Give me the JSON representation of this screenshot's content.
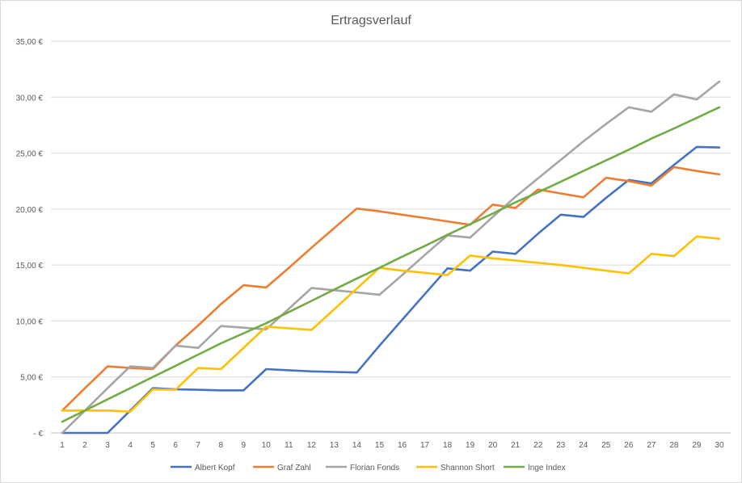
{
  "chart_data": {
    "type": "line",
    "title": "Ertragsverlauf",
    "xlabel": "",
    "ylabel": "",
    "x": [
      1,
      2,
      3,
      4,
      5,
      6,
      7,
      8,
      9,
      10,
      11,
      12,
      13,
      14,
      15,
      16,
      17,
      18,
      19,
      20,
      21,
      22,
      23,
      24,
      25,
      26,
      27,
      28,
      29,
      30
    ],
    "ylim": [
      0,
      35
    ],
    "y_ticks": [
      0,
      5,
      10,
      15,
      20,
      25,
      30,
      35
    ],
    "y_tick_labels": [
      "-  €",
      "5,00 €",
      "10,00 €",
      "15,00 €",
      "20,00 €",
      "25,00 €",
      "30,00 €",
      "35,00 €"
    ],
    "grid": true,
    "legend_position": "bottom",
    "series": [
      {
        "name": "Albert Kopf",
        "color": "#4472C4",
        "values": [
          0.0,
          0.0,
          0.0,
          2.0,
          4.0,
          3.9,
          3.85,
          3.8,
          3.8,
          5.7,
          5.6,
          5.5,
          5.45,
          5.4,
          7.8,
          10.1,
          12.4,
          14.7,
          14.5,
          16.2,
          16.0,
          17.8,
          19.5,
          19.3,
          21.0,
          22.6,
          22.3,
          23.95,
          25.55,
          25.5
        ],
        "values_note": "ignored"
      },
      {
        "name": "Graf Zahl",
        "color": "#ED7D31",
        "values": [
          2.0,
          4.0,
          5.95,
          5.8,
          5.7,
          7.8,
          9.6,
          11.5,
          13.2,
          13.0,
          14.75,
          16.55,
          18.3,
          20.05,
          19.8,
          19.5,
          19.2,
          18.9,
          18.6,
          20.4,
          20.1,
          21.75,
          21.4,
          21.05,
          22.8,
          22.5,
          22.1,
          23.75,
          23.4,
          23.1
        ]
      },
      {
        "name": "Florian Fonds",
        "color": "#A5A5A5",
        "values": [
          0.0,
          2.0,
          4.0,
          5.95,
          5.8,
          7.8,
          7.6,
          9.55,
          9.4,
          9.25,
          11.1,
          12.95,
          12.75,
          12.55,
          12.35,
          14.1,
          15.9,
          17.65,
          17.45,
          19.3,
          21.1,
          22.75,
          24.4,
          26.05,
          27.6,
          29.1,
          28.7,
          30.25,
          29.8,
          31.4
        ]
      },
      {
        "name": "Shannon Short",
        "color": "#FFC000",
        "values": [
          2.0,
          2.0,
          2.0,
          1.9,
          3.9,
          3.85,
          5.8,
          5.7,
          7.6,
          9.5,
          9.35,
          9.2,
          11.05,
          12.9,
          14.75,
          14.5,
          14.3,
          14.1,
          15.85,
          15.6,
          15.4,
          15.2,
          15.0,
          14.75,
          14.5,
          14.25,
          16.0,
          15.8,
          17.55,
          17.35
        ]
      },
      {
        "name": "Inge Index",
        "color": "#70AD47",
        "values": [
          1.0,
          2.0,
          3.0,
          4.0,
          5.0,
          6.0,
          7.0,
          8.0,
          8.9,
          9.8,
          10.8,
          11.8,
          12.8,
          13.8,
          14.75,
          15.75,
          16.7,
          17.7,
          18.65,
          19.6,
          20.6,
          21.5,
          22.45,
          23.4,
          24.35,
          25.3,
          26.3,
          27.2,
          28.15,
          29.1
        ]
      }
    ]
  }
}
